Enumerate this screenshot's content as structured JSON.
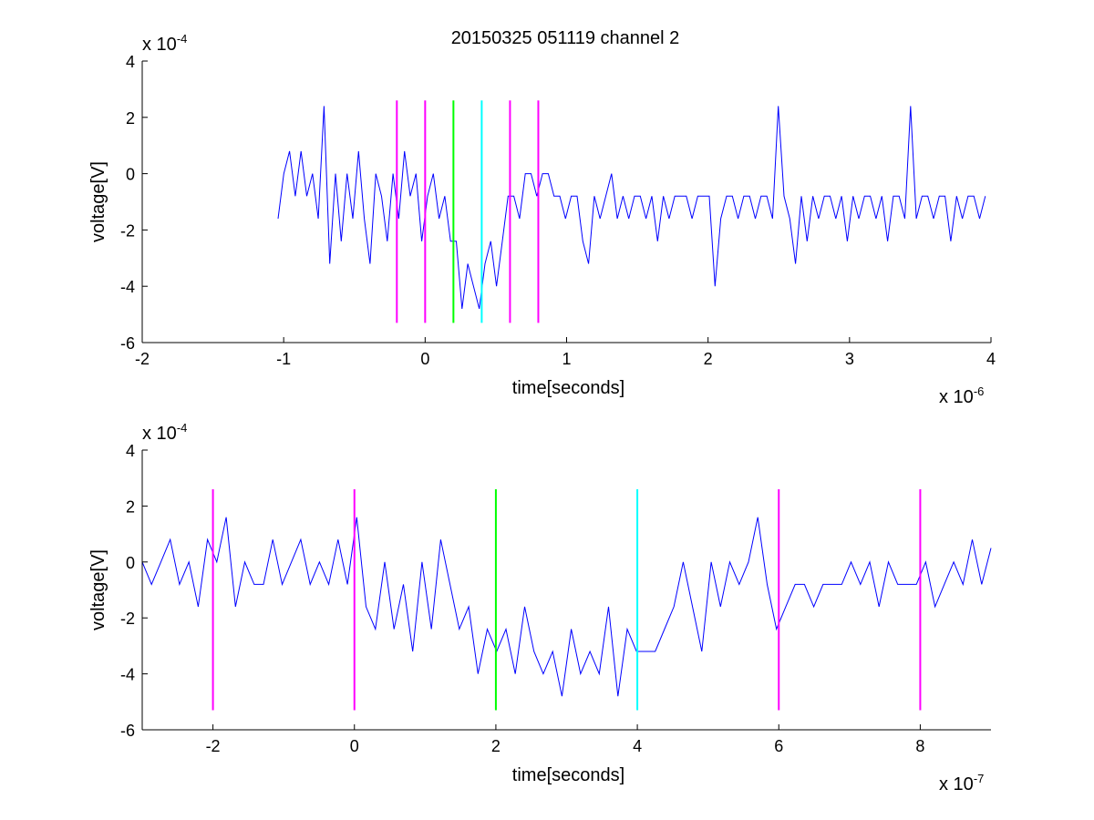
{
  "title": "20150325 051119 channel 2",
  "chart_data": [
    {
      "type": "line",
      "xlabel": "time[seconds]",
      "ylabel": "voltage[V]",
      "x_exponent_label": "x 10",
      "x_exponent": "-6",
      "y_exponent_label": "x 10",
      "y_exponent": "-4",
      "xlim": [
        -2,
        4
      ],
      "ylim": [
        -6,
        4
      ],
      "xticks": [
        -2,
        -1,
        0,
        1,
        2,
        3,
        4
      ],
      "yticks": [
        -6,
        -4,
        -2,
        0,
        2,
        4
      ],
      "signal": {
        "color": "#0000ff",
        "x_range": [
          -1.04,
          3.96
        ],
        "approx_values": [
          -1.6,
          0,
          0.8,
          -0.8,
          0.8,
          -0.8,
          0,
          -1.6,
          2.4,
          -3.2,
          0,
          -2.4,
          0,
          -1.6,
          0.8,
          -1.6,
          -3.2,
          0,
          -0.8,
          -2.4,
          0,
          -1.6,
          0.8,
          -0.8,
          0,
          -2.4,
          -0.8,
          0,
          -1.6,
          -0.8,
          -2.4,
          -2.4,
          -4.8,
          -3.2,
          -4,
          -4.8,
          -3.2,
          -2.4,
          -4,
          -2.4,
          -0.8,
          -0.8,
          -1.6,
          0,
          0,
          -0.8,
          0,
          0,
          -0.8,
          -0.8,
          -1.6,
          -0.8,
          -0.8,
          -2.4,
          -3.2,
          -0.8,
          -1.6,
          -0.8,
          0,
          -1.6,
          -0.8,
          -1.6,
          -0.8,
          -0.8,
          -1.6,
          -0.8,
          -2.4,
          -0.8,
          -1.6,
          -0.8,
          -0.8,
          -0.8,
          -1.6,
          -0.8,
          -0.8,
          -0.8,
          -4,
          -1.6,
          -0.8,
          -0.8,
          -1.6,
          -0.8,
          -0.8,
          -1.6,
          -0.8,
          -0.8,
          -1.6,
          2.4,
          -0.8,
          -1.6,
          -3.2,
          -0.8,
          -2.4,
          -0.8,
          -1.6,
          -0.8,
          -0.8,
          -1.6,
          -0.8,
          -2.4,
          -0.8,
          -1.6,
          -0.8,
          -0.8,
          -1.6,
          -0.8,
          -2.4,
          -0.8,
          -0.8,
          -1.6,
          2.4,
          -1.6,
          -0.8,
          -0.8,
          -1.6,
          -0.8,
          -0.8,
          -2.4,
          -0.8,
          -1.6,
          -0.8,
          -0.8,
          -1.6,
          -0.8
        ]
      },
      "markers": [
        {
          "x": -0.2,
          "color": "#ff00ff"
        },
        {
          "x": 0.0,
          "color": "#ff00ff"
        },
        {
          "x": 0.2,
          "color": "#00ff00"
        },
        {
          "x": 0.4,
          "color": "#00ffff"
        },
        {
          "x": 0.6,
          "color": "#ff00ff"
        },
        {
          "x": 0.8,
          "color": "#ff00ff"
        }
      ],
      "marker_y_range": [
        -5.3,
        2.6
      ]
    },
    {
      "type": "line",
      "xlabel": "time[seconds]",
      "ylabel": "voltage[V]",
      "x_exponent_label": "x 10",
      "x_exponent": "-7",
      "y_exponent_label": "x 10",
      "y_exponent": "-4",
      "xlim": [
        -3,
        9
      ],
      "ylim": [
        -6,
        4
      ],
      "xticks": [
        -2,
        0,
        2,
        4,
        6,
        8
      ],
      "yticks": [
        -6,
        -4,
        -2,
        0,
        2,
        4
      ],
      "signal": {
        "color": "#0000ff",
        "x_range": [
          -3,
          9
        ],
        "approx_values": [
          0,
          -0.8,
          0,
          0.8,
          -0.8,
          0,
          -1.6,
          0.8,
          0,
          1.6,
          -1.6,
          0,
          -0.8,
          -0.8,
          0.8,
          -0.8,
          0,
          0.8,
          -0.8,
          0,
          -0.8,
          0.8,
          -0.8,
          1.6,
          -1.6,
          -2.4,
          0,
          -2.4,
          -0.8,
          -3.2,
          0,
          -2.4,
          0.8,
          -0.8,
          -2.4,
          -1.6,
          -4,
          -2.4,
          -3.2,
          -2.4,
          -4,
          -1.6,
          -3.2,
          -4,
          -3.2,
          -4.8,
          -2.4,
          -4,
          -3.2,
          -4,
          -1.6,
          -4.8,
          -2.4,
          -3.2,
          -3.2,
          -3.2,
          -2.4,
          -1.6,
          0,
          -1.6,
          -3.2,
          0,
          -1.6,
          0,
          -0.8,
          0,
          1.6,
          -0.8,
          -2.4,
          -1.6,
          -0.8,
          -0.8,
          -1.6,
          -0.8,
          -0.8,
          -0.8,
          0,
          -0.8,
          0,
          -1.6,
          0,
          -0.8,
          -0.8,
          -0.8,
          0,
          -1.6,
          -0.8,
          0,
          -0.8,
          0.8,
          -0.8,
          0.5
        ]
      },
      "markers": [
        {
          "x": -2,
          "color": "#ff00ff"
        },
        {
          "x": 0,
          "color": "#ff00ff"
        },
        {
          "x": 2,
          "color": "#00ff00"
        },
        {
          "x": 4,
          "color": "#00ffff"
        },
        {
          "x": 6,
          "color": "#ff00ff"
        },
        {
          "x": 8,
          "color": "#ff00ff"
        }
      ],
      "marker_y_range": [
        -5.3,
        2.6
      ]
    }
  ]
}
